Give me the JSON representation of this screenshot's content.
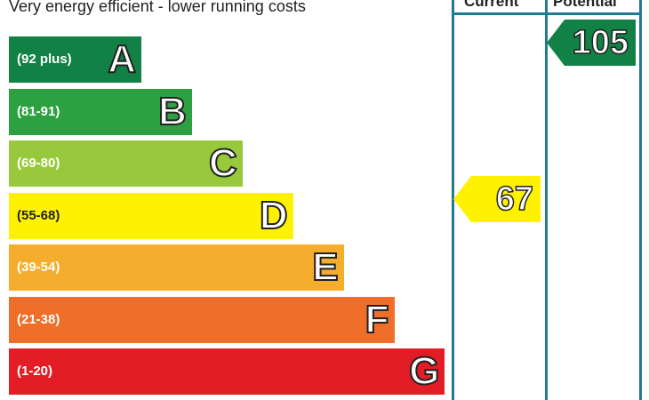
{
  "chart_data": {
    "type": "bar",
    "title": "",
    "caption": "Very energy efficient - lower running costs",
    "bands": [
      {
        "letter": "A",
        "range": "(92 plus)",
        "color": "#128145"
      },
      {
        "letter": "B",
        "range": "(81-91)",
        "color": "#2da141"
      },
      {
        "letter": "C",
        "range": "(69-80)",
        "color": "#98c93c"
      },
      {
        "letter": "D",
        "range": "(55-68)",
        "color": "#fff200"
      },
      {
        "letter": "E",
        "range": "(39-54)",
        "color": "#f5ad2d"
      },
      {
        "letter": "F",
        "range": "(21-38)",
        "color": "#ee6e2a"
      },
      {
        "letter": "G",
        "range": "(1-20)",
        "color": "#e31d25"
      }
    ],
    "columns": [
      {
        "label": "Current",
        "value": 67,
        "band": "D",
        "color": "#fff200"
      },
      {
        "label": "Potential",
        "value": 105,
        "band": "A",
        "color": "#128145"
      }
    ],
    "frame_color": "#1f7a94"
  }
}
